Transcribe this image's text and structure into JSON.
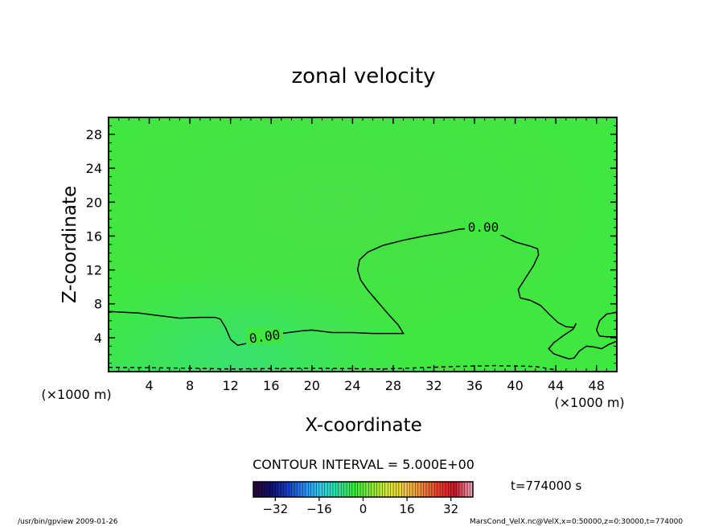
{
  "chart_data": {
    "type": "contour",
    "title": "zonal velocity",
    "xlabel": "X-coordinate",
    "ylabel": "Z-coordinate",
    "x_unit": "(×1000 m)",
    "y_unit": "(×1000 m)",
    "xlim": [
      0,
      50
    ],
    "ylim": [
      0,
      30
    ],
    "x_ticks": [
      4,
      8,
      12,
      16,
      20,
      24,
      28,
      32,
      36,
      40,
      44,
      48
    ],
    "y_ticks": [
      4,
      8,
      12,
      16,
      20,
      24,
      28
    ],
    "contour_interval_label": "CONTOUR INTERVAL = 5.000E+00",
    "contour_labels": [
      "0.00",
      "0.00"
    ],
    "time_label": "t=774000 s",
    "colorbar": {
      "range": [
        -40,
        40
      ],
      "ticks": [
        -32,
        -16,
        0,
        16,
        32
      ],
      "colors": [
        "#2a0a3a",
        "#10106e",
        "#1a3cd0",
        "#2a8cf0",
        "#2ed0e8",
        "#30e0a0",
        "#3ae83a",
        "#8ae838",
        "#d8e838",
        "#f0c840",
        "#f08838",
        "#e84030",
        "#c81828",
        "#f0a0b0"
      ]
    },
    "field_color": "#3fe83f",
    "zero_contours": [
      {
        "name": "0.00",
        "points": [
          [
            0,
            7.1
          ],
          [
            3,
            6.9
          ],
          [
            5,
            6.6
          ],
          [
            7,
            6.3
          ],
          [
            9,
            6.4
          ],
          [
            10.5,
            6.4
          ],
          [
            11,
            6.2
          ],
          [
            11.5,
            5.2
          ],
          [
            12,
            3.8
          ],
          [
            12.7,
            3.1
          ],
          [
            13.5,
            3.3
          ],
          [
            14.3,
            3.8
          ],
          [
            15.5,
            4.2
          ],
          [
            17,
            4.5
          ],
          [
            19,
            4.8
          ],
          [
            20,
            4.9
          ],
          [
            22,
            4.6
          ],
          [
            24,
            4.6
          ],
          [
            26,
            4.5
          ],
          [
            28,
            4.5
          ],
          [
            29,
            4.5
          ],
          [
            28.5,
            5.5
          ],
          [
            27.5,
            6.8
          ],
          [
            26.5,
            8.2
          ],
          [
            25.5,
            9.6
          ],
          [
            24.8,
            10.8
          ],
          [
            24.5,
            12
          ],
          [
            24.7,
            13.2
          ],
          [
            25.5,
            14.1
          ],
          [
            27,
            14.9
          ],
          [
            29,
            15.5
          ],
          [
            31,
            16
          ],
          [
            33,
            16.4
          ],
          [
            34.5,
            16.8
          ],
          [
            35.5,
            16.9
          ],
          [
            37,
            16.8
          ],
          [
            38.5,
            16.2
          ],
          [
            40,
            15.3
          ],
          [
            41.5,
            14.8
          ],
          [
            42.2,
            14.5
          ],
          [
            42.3,
            13.8
          ],
          [
            41.8,
            12.5
          ],
          [
            41,
            11
          ],
          [
            40.3,
            9.7
          ],
          [
            40.5,
            8.7
          ],
          [
            41.5,
            8.4
          ],
          [
            42.5,
            7.8
          ],
          [
            43.4,
            6.7
          ],
          [
            44.2,
            5.8
          ],
          [
            45,
            5.3
          ],
          [
            45.8,
            5.2
          ],
          [
            46,
            5.7
          ],
          [
            45.7,
            5.0
          ],
          [
            44.8,
            4.3
          ],
          [
            43.8,
            3.4
          ],
          [
            43.3,
            2.7
          ],
          [
            43.8,
            2.1
          ],
          [
            44.5,
            1.8
          ],
          [
            45.3,
            1.5
          ],
          [
            45.8,
            1.6
          ],
          [
            46.3,
            2.4
          ],
          [
            47,
            3.0
          ],
          [
            47.8,
            2.9
          ],
          [
            48.5,
            2.7
          ],
          [
            49.2,
            3.2
          ],
          [
            50,
            3.6
          ]
        ]
      },
      {
        "name": "right-branch",
        "points": [
          [
            50,
            7.0
          ],
          [
            49,
            6.8
          ],
          [
            48.3,
            6.0
          ],
          [
            48.0,
            4.9
          ],
          [
            48.3,
            4.2
          ],
          [
            49,
            4.1
          ],
          [
            50,
            4.1
          ]
        ]
      },
      {
        "name": "near-surface",
        "points": [
          [
            0,
            0.5
          ],
          [
            8,
            0.4
          ],
          [
            12,
            0.3
          ],
          [
            20,
            0.4
          ],
          [
            27,
            0.3
          ],
          [
            34,
            0.6
          ],
          [
            38,
            0.7
          ],
          [
            42,
            0.6
          ],
          [
            44,
            0.2
          ]
        ]
      }
    ],
    "grid": false
  },
  "footer": {
    "left": "/usr/bin/gpview   2009-01-26",
    "right": "MarsCond_VelX.nc@VelX,x=0:50000,z=0:30000,t=774000"
  }
}
